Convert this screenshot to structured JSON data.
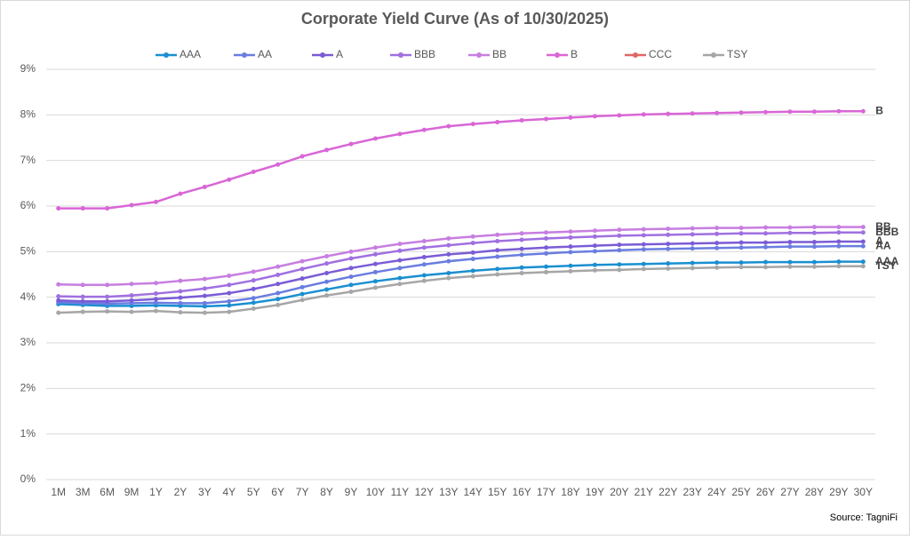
{
  "chart_data": {
    "type": "line",
    "title": "Corporate Yield Curve (As of 10/30/2025)",
    "source": "Source: TagniFi",
    "categories": [
      "1M",
      "3M",
      "6M",
      "9M",
      "1Y",
      "2Y",
      "3Y",
      "4Y",
      "5Y",
      "6Y",
      "7Y",
      "8Y",
      "9Y",
      "10Y",
      "11Y",
      "12Y",
      "13Y",
      "14Y",
      "15Y",
      "16Y",
      "17Y",
      "18Y",
      "19Y",
      "20Y",
      "21Y",
      "22Y",
      "23Y",
      "24Y",
      "25Y",
      "26Y",
      "27Y",
      "28Y",
      "29Y",
      "30Y"
    ],
    "series": [
      {
        "name": "AAA",
        "color": "#1a8fd0",
        "values": [
          3.85,
          3.83,
          3.81,
          3.81,
          3.82,
          3.81,
          3.8,
          3.82,
          3.88,
          3.96,
          4.07,
          4.17,
          4.27,
          4.35,
          4.42,
          4.48,
          4.53,
          4.58,
          4.62,
          4.65,
          4.67,
          4.69,
          4.71,
          4.72,
          4.73,
          4.74,
          4.75,
          4.76,
          4.76,
          4.77,
          4.77,
          4.77,
          4.78,
          4.78
        ]
      },
      {
        "name": "AA",
        "color": "#6a7de0",
        "values": [
          3.89,
          3.87,
          3.86,
          3.87,
          3.88,
          3.87,
          3.87,
          3.91,
          3.98,
          4.09,
          4.22,
          4.34,
          4.45,
          4.55,
          4.64,
          4.72,
          4.79,
          4.84,
          4.89,
          4.93,
          4.96,
          4.99,
          5.01,
          5.03,
          5.05,
          5.06,
          5.07,
          5.08,
          5.09,
          5.1,
          5.11,
          5.11,
          5.12,
          5.12
        ]
      },
      {
        "name": "A",
        "color": "#7a5cd6",
        "values": [
          3.93,
          3.91,
          3.91,
          3.93,
          3.96,
          3.99,
          4.03,
          4.09,
          4.18,
          4.29,
          4.41,
          4.53,
          4.64,
          4.73,
          4.81,
          4.88,
          4.94,
          4.98,
          5.03,
          5.06,
          5.09,
          5.11,
          5.13,
          5.15,
          5.16,
          5.17,
          5.18,
          5.19,
          5.2,
          5.2,
          5.21,
          5.21,
          5.22,
          5.22
        ]
      },
      {
        "name": "BBB",
        "color": "#a070e0",
        "values": [
          4.02,
          4.01,
          4.01,
          4.04,
          4.08,
          4.13,
          4.19,
          4.27,
          4.37,
          4.49,
          4.62,
          4.74,
          4.85,
          4.94,
          5.02,
          5.09,
          5.14,
          5.19,
          5.23,
          5.26,
          5.29,
          5.31,
          5.33,
          5.35,
          5.36,
          5.37,
          5.38,
          5.39,
          5.4,
          5.4,
          5.41,
          5.41,
          5.42,
          5.42
        ]
      },
      {
        "name": "BB",
        "color": "#c77ee0",
        "values": [
          4.28,
          4.27,
          4.27,
          4.29,
          4.31,
          4.36,
          4.4,
          4.47,
          4.56,
          4.67,
          4.79,
          4.9,
          5.0,
          5.09,
          5.17,
          5.23,
          5.29,
          5.33,
          5.37,
          5.4,
          5.42,
          5.44,
          5.46,
          5.48,
          5.49,
          5.5,
          5.51,
          5.52,
          5.52,
          5.53,
          5.53,
          5.54,
          5.54,
          5.54
        ]
      },
      {
        "name": "B",
        "color": "#d966d6",
        "values": [
          5.95,
          5.95,
          5.95,
          6.02,
          6.09,
          6.27,
          6.42,
          6.58,
          6.75,
          6.91,
          7.09,
          7.23,
          7.36,
          7.48,
          7.58,
          7.67,
          7.75,
          7.8,
          7.84,
          7.88,
          7.91,
          7.94,
          7.97,
          7.99,
          8.01,
          8.02,
          8.03,
          8.04,
          8.05,
          8.06,
          8.07,
          8.07,
          8.08,
          8.08
        ]
      },
      {
        "name": "CCC",
        "color": "#e06666",
        "values": [
          null,
          null,
          null,
          null,
          null,
          null,
          null,
          null,
          null,
          null,
          null,
          null,
          null,
          null,
          null,
          null,
          null,
          null,
          null,
          null,
          null,
          null,
          null,
          null,
          null,
          null,
          null,
          null,
          null,
          null,
          null,
          null,
          null,
          null
        ]
      },
      {
        "name": "TSY",
        "color": "#a6a6a6",
        "values": [
          3.66,
          3.68,
          3.69,
          3.68,
          3.7,
          3.67,
          3.66,
          3.68,
          3.75,
          3.83,
          3.94,
          4.04,
          4.12,
          4.21,
          4.29,
          4.36,
          4.42,
          4.46,
          4.5,
          4.53,
          4.55,
          4.57,
          4.59,
          4.6,
          4.62,
          4.63,
          4.64,
          4.65,
          4.66,
          4.66,
          4.67,
          4.67,
          4.68,
          4.68
        ]
      }
    ],
    "ylim": [
      0,
      9
    ],
    "yticks": [
      {
        "value": 0,
        "label": "0%"
      },
      {
        "value": 1,
        "label": "1%"
      },
      {
        "value": 2,
        "label": "2%"
      },
      {
        "value": 3,
        "label": "3%"
      },
      {
        "value": 4,
        "label": "4%"
      },
      {
        "value": 5,
        "label": "5%"
      },
      {
        "value": 6,
        "label": "6%"
      },
      {
        "value": 7,
        "label": "7%"
      },
      {
        "value": 8,
        "label": "8%"
      },
      {
        "value": 9,
        "label": "9%"
      }
    ],
    "grid": true,
    "legend": "top"
  }
}
